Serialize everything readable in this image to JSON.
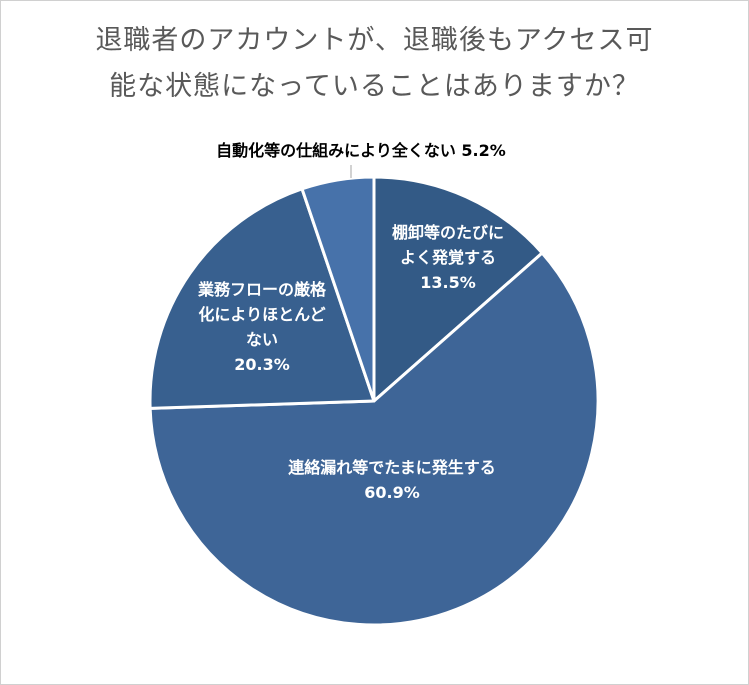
{
  "chart_data": {
    "type": "pie",
    "title_lines": [
      "退職者のアカウントが、退職後もアクセス可",
      "能な状態になっていることはありますか？"
    ],
    "slices": [
      {
        "label_lines": [
          "棚卸等のたびに",
          "よく発覚する"
        ],
        "value": 13.5,
        "value_label": "13.5%",
        "color": "#335a86"
      },
      {
        "label_lines": [
          "連絡漏れ等でたまに発生する"
        ],
        "value": 60.9,
        "value_label": "60.9%",
        "color": "#3e6597"
      },
      {
        "label_lines": [
          "業務フローの厳格",
          "化によりほとんど",
          "ない"
        ],
        "value": 20.3,
        "value_label": "20.3%",
        "color": "#38608f"
      },
      {
        "label_lines": [
          "自動化等の仕組みにより全くない"
        ],
        "value": 5.2,
        "value_label": "5.2%",
        "color": "#4772aa",
        "outside": true
      }
    ]
  }
}
